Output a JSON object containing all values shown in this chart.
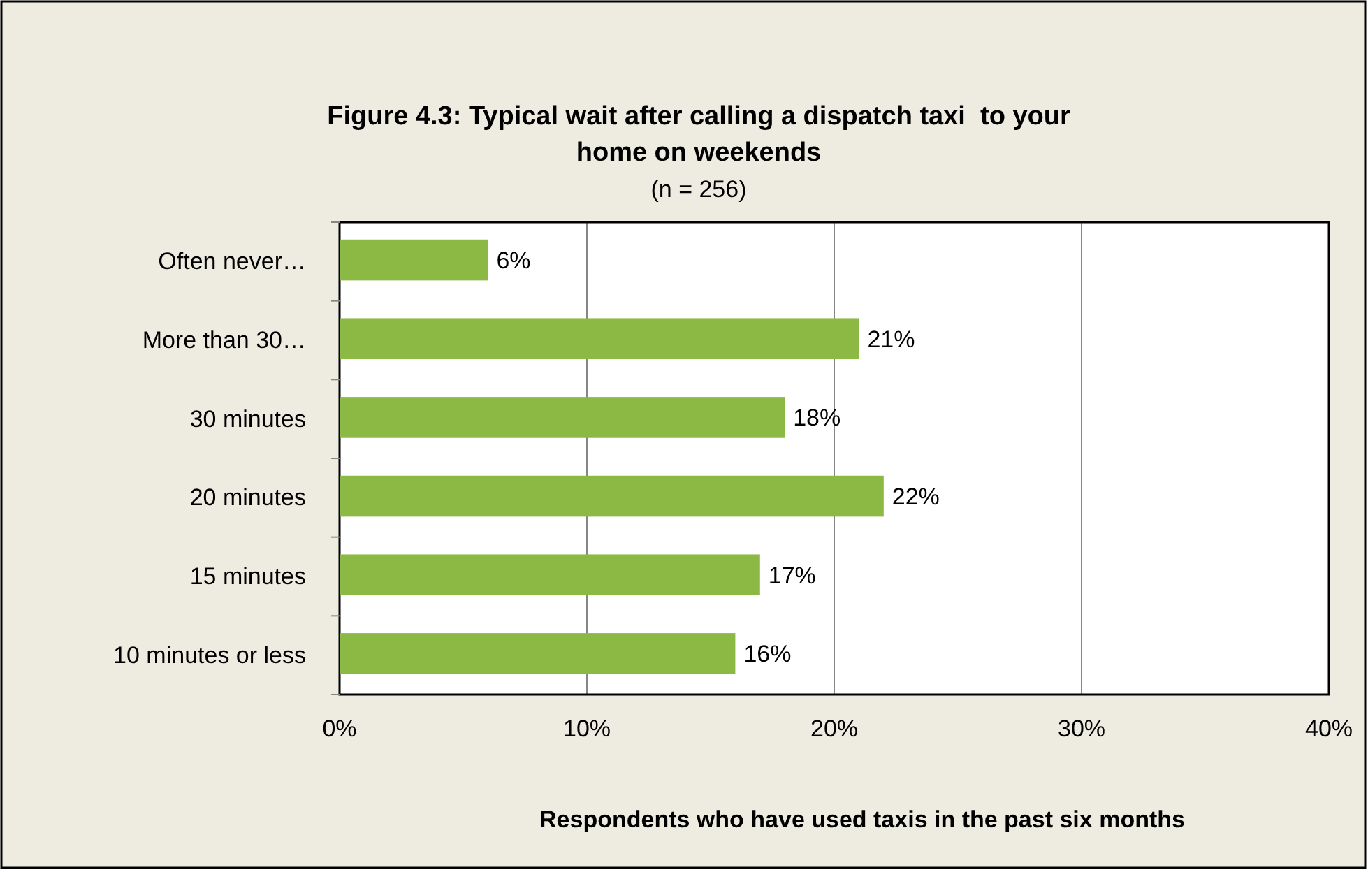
{
  "chart_data": {
    "type": "bar",
    "orientation": "horizontal",
    "title": "Figure 4.3: Typical wait after calling a dispatch taxi  to your home on weekends",
    "subtitle": "(n = 256)",
    "xlabel": "Respondents who have used taxis in the past six months",
    "categories": [
      "Often never…",
      "More than 30…",
      "30 minutes",
      "20 minutes",
      "15 minutes",
      "10 minutes or less"
    ],
    "values": [
      6,
      21,
      18,
      22,
      17,
      16
    ],
    "color": "#8cb844",
    "xlim": [
      0,
      40
    ],
    "xticks": [
      {
        "value": 0,
        "label": "0%"
      },
      {
        "value": 10,
        "label": "10%"
      },
      {
        "value": 20,
        "label": "20%"
      },
      {
        "value": 30,
        "label": "30%"
      },
      {
        "value": 40,
        "label": "40%"
      }
    ],
    "value_labels": [
      "6%",
      "21%",
      "18%",
      "22%",
      "17%",
      "16%"
    ],
    "grid": "x"
  }
}
